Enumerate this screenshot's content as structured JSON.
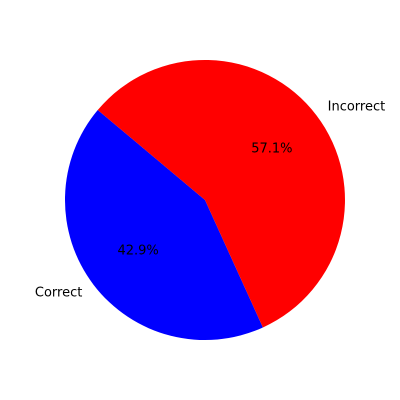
{
  "chart_data": {
    "type": "pie",
    "title": "",
    "start_angle_deg": 140,
    "direction": "counterclockwise",
    "slices": [
      {
        "label": "Correct",
        "value": 42.9,
        "pct_label": "42.9%",
        "color": "#0000ff"
      },
      {
        "label": "Incorrect",
        "value": 57.1,
        "pct_label": "57.1%",
        "color": "#ff0000"
      }
    ]
  }
}
